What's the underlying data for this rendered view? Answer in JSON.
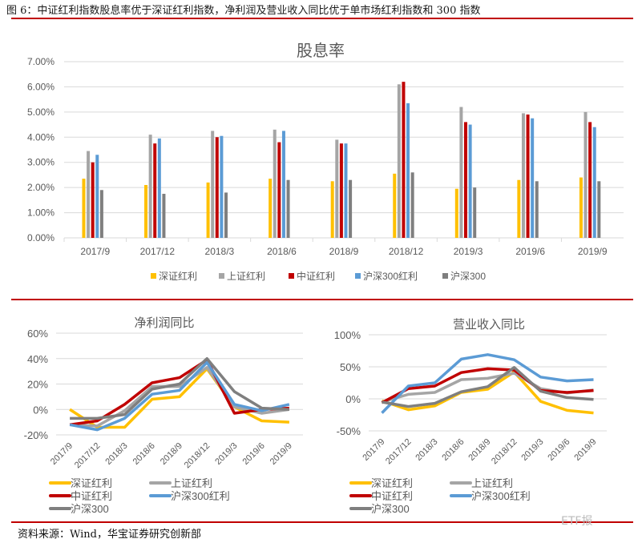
{
  "caption": "图 6：中证红利指数股息率优于深证红利指数，净利润及营业收入同比优于单市场红利指数和 300 指数",
  "footer": "资料来源：Wind，华宝证券研究创新部",
  "watermark": "ETF报",
  "colors": {
    "深证红利": "#ffc000",
    "上证红利": "#a5a5a5",
    "中证红利": "#c00000",
    "沪深300红利": "#5b9bd5",
    "沪深300": "#7f7f7f",
    "rule": "#c00000"
  },
  "chart_data": [
    {
      "type": "bar",
      "title": "股息率",
      "categories": [
        "2017/9",
        "2017/12",
        "2018/3",
        "2018/6",
        "2018/9",
        "2018/12",
        "2019/3",
        "2019/6",
        "2019/9"
      ],
      "ylim": [
        0,
        7
      ],
      "yticks": [
        "0.00%",
        "1.00%",
        "2.00%",
        "3.00%",
        "4.00%",
        "5.00%",
        "6.00%",
        "7.00%"
      ],
      "grid": true,
      "legend": "bottom",
      "series": [
        {
          "name": "深证红利",
          "values": [
            2.35,
            2.1,
            2.2,
            2.35,
            2.25,
            2.55,
            1.95,
            2.3,
            2.4
          ]
        },
        {
          "name": "上证红利",
          "values": [
            3.45,
            4.1,
            4.25,
            4.3,
            3.9,
            6.1,
            5.2,
            4.95,
            5.0
          ]
        },
        {
          "name": "中证红利",
          "values": [
            3.0,
            3.75,
            4.0,
            3.8,
            3.75,
            6.2,
            4.6,
            4.9,
            4.6
          ]
        },
        {
          "name": "沪深300红利",
          "values": [
            3.3,
            3.95,
            4.05,
            4.25,
            3.75,
            5.35,
            4.5,
            4.75,
            4.4
          ]
        },
        {
          "name": "沪深300",
          "values": [
            1.9,
            1.75,
            1.8,
            2.3,
            2.3,
            2.6,
            2.0,
            2.25,
            2.25
          ]
        }
      ]
    },
    {
      "type": "line",
      "title": "净利润同比",
      "categories": [
        "2017/9",
        "2017/12",
        "2018/3",
        "2018/6",
        "2018/9",
        "2018/12",
        "2019/3",
        "2019/6",
        "2019/9"
      ],
      "ylim": [
        -20,
        60
      ],
      "yticks": [
        "-20%",
        "0%",
        "20%",
        "40%",
        "60%"
      ],
      "grid": true,
      "legend": "bottom",
      "series": [
        {
          "name": "深证红利",
          "values": [
            0,
            -14,
            -14,
            8,
            10,
            32,
            2,
            -9,
            -10
          ]
        },
        {
          "name": "上证红利",
          "values": [
            -12,
            -13,
            -1,
            18,
            18,
            33,
            2,
            -3,
            0
          ]
        },
        {
          "name": "中证红利",
          "values": [
            -12,
            -9,
            4,
            21,
            25,
            39,
            -3,
            0,
            1
          ]
        },
        {
          "name": "沪深300红利",
          "values": [
            -12,
            -16,
            -7,
            12,
            15,
            37,
            4,
            -1,
            4
          ]
        },
        {
          "name": "沪深300",
          "values": [
            -7,
            -7,
            -4,
            16,
            20,
            40,
            14,
            1,
            0
          ]
        }
      ]
    },
    {
      "type": "line",
      "title": "营业收入同比",
      "categories": [
        "2017/9",
        "2017/12",
        "2018/3",
        "2018/6",
        "2018/9",
        "2018/12",
        "2019/3",
        "2019/6",
        "2019/9"
      ],
      "ylim": [
        -50,
        100
      ],
      "yticks": [
        "-50%",
        "0%",
        "50%",
        "100%"
      ],
      "grid": true,
      "legend": "bottom",
      "series": [
        {
          "name": "深证红利",
          "values": [
            -3,
            -17,
            -11,
            10,
            15,
            42,
            -4,
            -18,
            -22
          ]
        },
        {
          "name": "上证红利",
          "values": [
            -5,
            7,
            10,
            30,
            32,
            40,
            16,
            9,
            14
          ]
        },
        {
          "name": "中证红利",
          "values": [
            -6,
            16,
            20,
            41,
            47,
            45,
            13,
            10,
            13
          ]
        },
        {
          "name": "沪深300红利",
          "values": [
            -22,
            20,
            25,
            62,
            69,
            61,
            34,
            28,
            30
          ]
        },
        {
          "name": "沪深300",
          "values": [
            -5,
            -12,
            -7,
            11,
            19,
            49,
            12,
            2,
            -1
          ]
        }
      ]
    }
  ]
}
